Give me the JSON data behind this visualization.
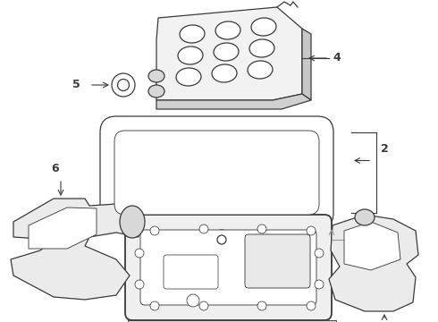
{
  "bg_color": "#ffffff",
  "lc": "#3a3a3a",
  "lc_light": "#666666",
  "lc_gray": "#999999",
  "lw": 0.9,
  "figsize": [
    4.9,
    3.6
  ],
  "dpi": 100,
  "xlim": [
    0,
    490
  ],
  "ylim": [
    0,
    360
  ]
}
